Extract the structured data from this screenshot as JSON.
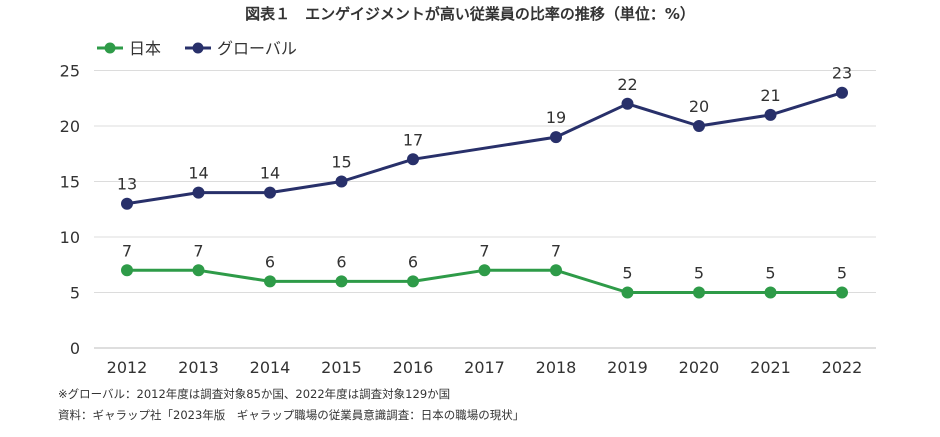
{
  "chart_data": {
    "type": "line",
    "title": "図表１　エンゲイジメントが高い従業員の比率の推移（単位：%）",
    "categories": [
      "2012",
      "2013",
      "2014",
      "2015",
      "2016",
      "2017",
      "2018",
      "2019",
      "2020",
      "2021",
      "2022"
    ],
    "series": [
      {
        "name": "日本",
        "color": "#2e9b48",
        "values": [
          7,
          7,
          6,
          6,
          6,
          7,
          7,
          5,
          5,
          5,
          5
        ],
        "labels": [
          "7",
          "7",
          "6",
          "6",
          "6",
          "7",
          "7",
          "5",
          "5",
          "5",
          "5"
        ]
      },
      {
        "name": "グローバル",
        "color": "#28306a",
        "values": [
          13,
          14,
          14,
          15,
          17,
          null,
          19,
          22,
          20,
          21,
          23
        ],
        "labels": [
          "13",
          "14",
          "14",
          "15",
          "17",
          "",
          "19",
          "22",
          "20",
          "21",
          "23"
        ]
      }
    ],
    "ylim": [
      0,
      25
    ],
    "yticks": [
      "0",
      "5",
      "10",
      "15",
      "20",
      "25"
    ],
    "grid": true,
    "legend": "top-left",
    "xlabel": "",
    "ylabel": ""
  },
  "footnotes": [
    "※グローバル：2012年度は調査対象85か国、2022年度は調査対象129か国",
    "資料：ギャラップ社「2023年版　ギャラップ職場の従業員意識調査：日本の職場の現状」"
  ]
}
